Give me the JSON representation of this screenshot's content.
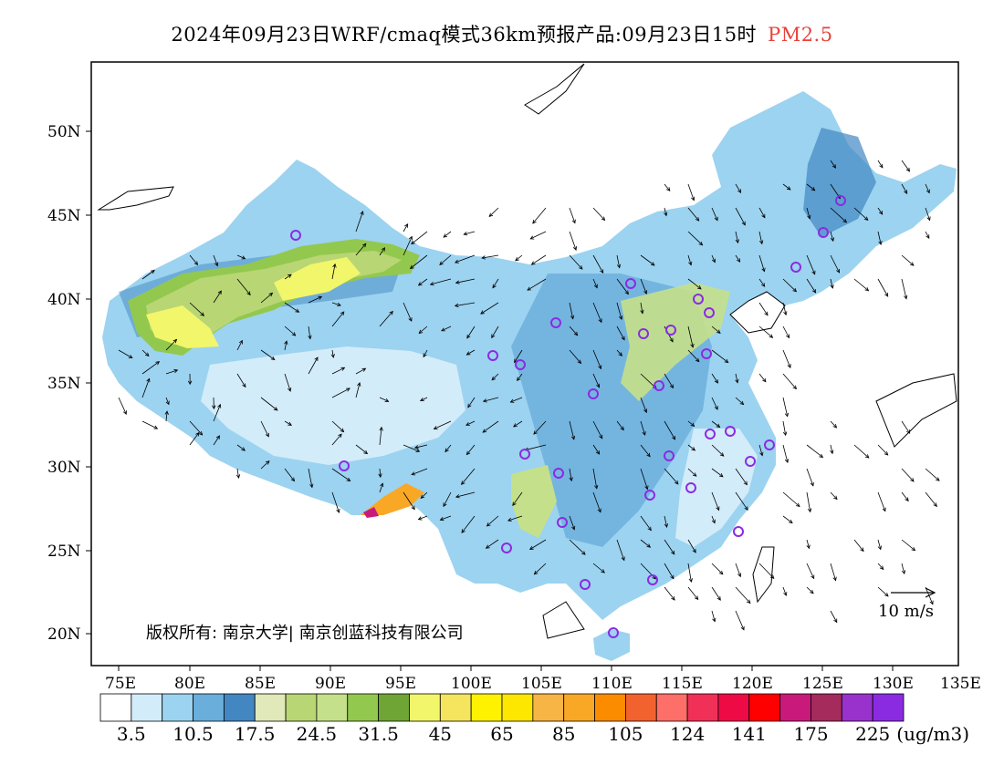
{
  "title": {
    "main": "2024年09月23日WRF/cmaq模式36km预报产品:09月23日15时",
    "species": "PM2.5",
    "species_color": "#e8423a"
  },
  "map": {
    "lat_ticks": [
      "50N",
      "45N",
      "40N",
      "35N",
      "30N",
      "25N",
      "20N"
    ],
    "lon_ticks": [
      "75E",
      "80E",
      "85E",
      "90E",
      "95E",
      "100E",
      "105E",
      "110E",
      "115E",
      "120E",
      "125E",
      "130E",
      "135E"
    ],
    "copyright": "版权所有: 南京大学| 南京创蓝科技有限公司",
    "wind_reference": "10 m/s"
  },
  "colorbar": {
    "colors": [
      "#ffffff",
      "#d3ecf9",
      "#9cd3f0",
      "#6aaedc",
      "#4287c2",
      "#e1e8b9",
      "#b9d675",
      "#c5e08a",
      "#93c84e",
      "#6ea535",
      "#f2f66a",
      "#f4e45e",
      "#fff200",
      "#fde600",
      "#f6b545",
      "#f9a825",
      "#fb8c00",
      "#f2622e",
      "#ff6f69",
      "#f03057",
      "#ee0a45",
      "#ff0000",
      "#c91a7c",
      "#a42b5c",
      "#9932cc",
      "#8a2be2"
    ],
    "labels": [
      "3.5",
      "10.5",
      "17.5",
      "24.5",
      "31.5",
      "45",
      "65",
      "85",
      "105",
      "124",
      "141",
      "175",
      "225"
    ],
    "unit": "(ug/m3)"
  }
}
